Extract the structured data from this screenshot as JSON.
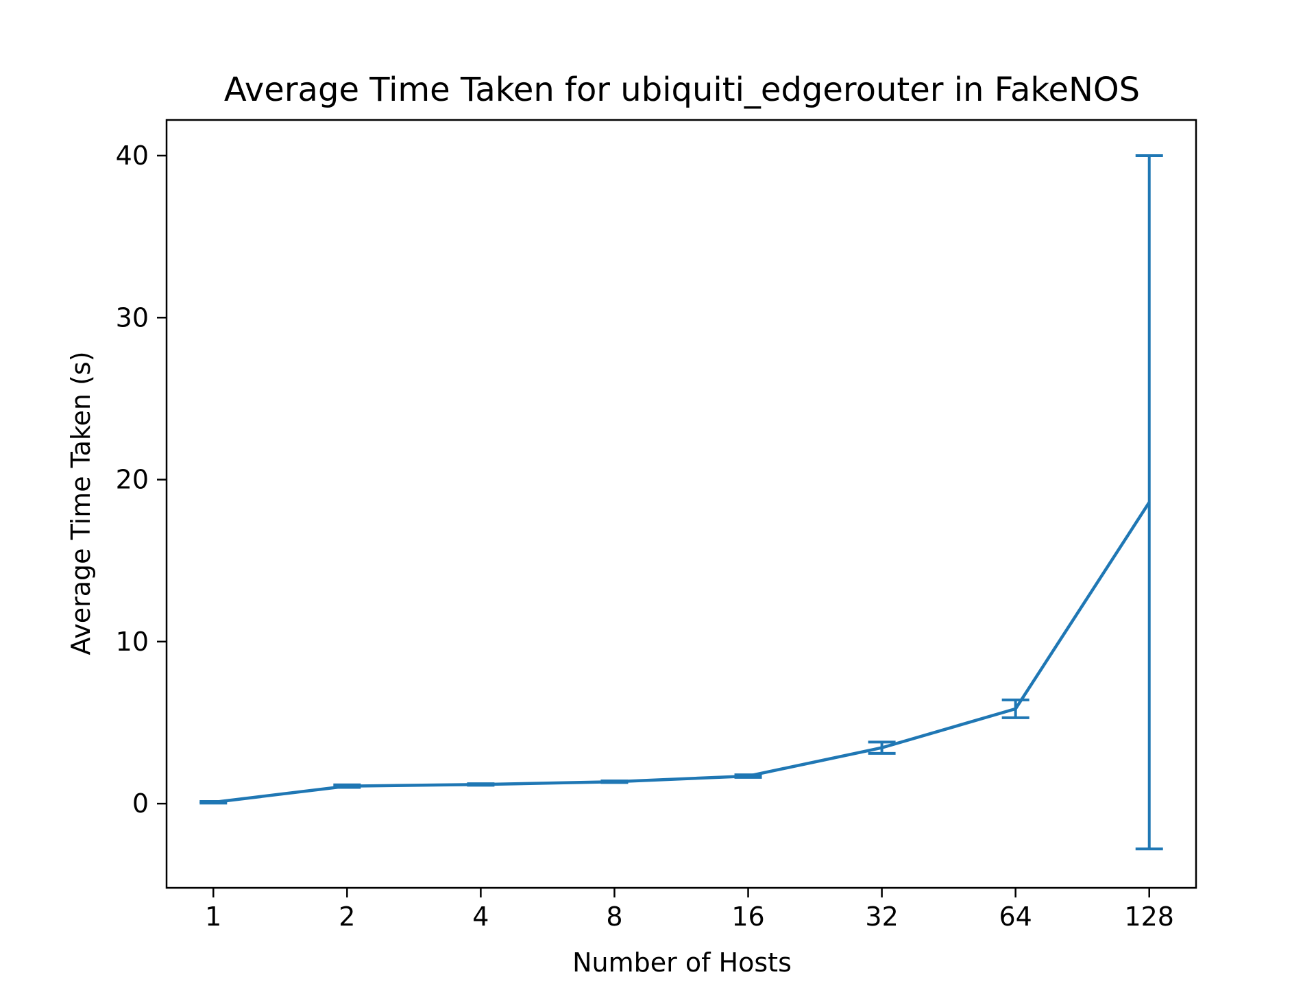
{
  "chart_data": {
    "type": "line",
    "title": "Average Time Taken for ubiquiti_edgerouter in FakeNOS",
    "xlabel": "Number of Hosts",
    "ylabel": "Average Time Taken (s)",
    "x_scale": "log2",
    "categories": [
      "1",
      "2",
      "4",
      "8",
      "16",
      "32",
      "64",
      "128"
    ],
    "x": [
      1,
      2,
      4,
      8,
      16,
      32,
      64,
      128
    ],
    "yticks": [
      0,
      10,
      20,
      30,
      40
    ],
    "ylim": [
      -5.2,
      42.2
    ],
    "grid": false,
    "series": [
      {
        "values": [
          0.08,
          1.08,
          1.18,
          1.35,
          1.7,
          3.45,
          5.85,
          18.6
        ],
        "error": [
          0.05,
          0.08,
          0.05,
          0.05,
          0.08,
          0.35,
          0.55,
          21.4
        ],
        "color": "#1f77b4"
      }
    ]
  }
}
